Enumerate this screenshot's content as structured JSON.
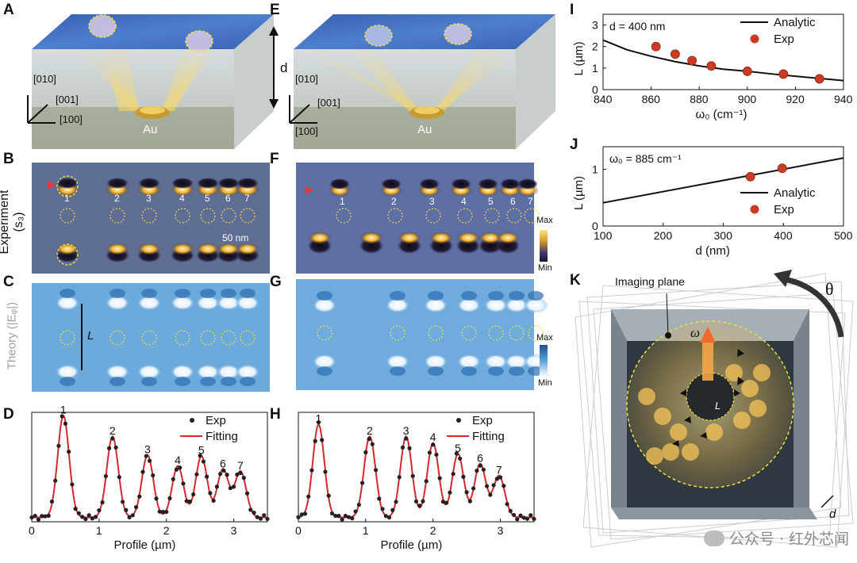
{
  "panels": {
    "A": "A",
    "B": "B",
    "C": "C",
    "D": "D",
    "E": "E",
    "F": "F",
    "G": "G",
    "H": "H",
    "I": "I",
    "J": "J",
    "K": "K"
  },
  "crystal": {
    "axis_010": "[010]",
    "axis_001": "[001]",
    "axis_100": "[100]",
    "au": "Au",
    "d": "d"
  },
  "maps": {
    "experiment_ylabel": "Experiment (s₃)",
    "theory_ylabel": "Theory (|Eᵩ|)",
    "max": "Max",
    "min": "Min",
    "scale": "50 nm",
    "L": "L",
    "markers": [
      "1",
      "2",
      "3",
      "4",
      "5",
      "6",
      "7"
    ]
  },
  "colors": {
    "map_dark": "#2c2f63",
    "map_hot": "#f5b52e",
    "theory_bg": "#4f9ad6",
    "fit_red": "#d6282c",
    "exp_dot": "#cc3b23",
    "glass": "#9fb0bd"
  },
  "profile_labels": {
    "exp": "Exp",
    "fit": "Fitting"
  },
  "chart_data": [
    {
      "type": "line",
      "panel": "D",
      "xlabel": "Profile (µm)",
      "ylabel": "",
      "xlim": [
        0,
        3.5
      ],
      "xticks": [
        "0",
        "1",
        "2",
        "3"
      ],
      "series": [
        {
          "name": "Exp"
        },
        {
          "name": "Fitting"
        }
      ],
      "peaks": [
        {
          "label": "1",
          "x": 0.47,
          "h": 0.93
        },
        {
          "label": "2",
          "x": 1.2,
          "h": 0.74
        },
        {
          "label": "3",
          "x": 1.72,
          "h": 0.57
        },
        {
          "label": "4",
          "x": 2.17,
          "h": 0.47
        },
        {
          "label": "5",
          "x": 2.52,
          "h": 0.56
        },
        {
          "label": "6",
          "x": 2.84,
          "h": 0.44
        },
        {
          "label": "7",
          "x": 3.1,
          "h": 0.42
        }
      ]
    },
    {
      "type": "line",
      "panel": "H",
      "xlabel": "Profile (µm)",
      "ylabel": "",
      "xlim": [
        0,
        3.5
      ],
      "xticks": [
        "0",
        "1",
        "2",
        "3"
      ],
      "series": [
        {
          "name": "Exp"
        },
        {
          "name": "Fitting"
        }
      ],
      "peaks": [
        {
          "label": "1",
          "x": 0.3,
          "h": 0.85
        },
        {
          "label": "2",
          "x": 1.06,
          "h": 0.74
        },
        {
          "label": "3",
          "x": 1.6,
          "h": 0.74
        },
        {
          "label": "4",
          "x": 2.0,
          "h": 0.68
        },
        {
          "label": "5",
          "x": 2.37,
          "h": 0.58
        },
        {
          "label": "6",
          "x": 2.7,
          "h": 0.49
        },
        {
          "label": "7",
          "x": 2.98,
          "h": 0.38
        }
      ]
    },
    {
      "type": "scatter",
      "panel": "I",
      "annotation": "d = 400 nm",
      "xlabel": "ω₀ (cm⁻¹)",
      "ylabel": "L (µm)",
      "xlim": [
        840,
        940
      ],
      "ylim": [
        0,
        3.5
      ],
      "xticks": [
        840,
        860,
        880,
        900,
        920,
        940
      ],
      "yticks": [
        0,
        1,
        2,
        3
      ],
      "legend": "top-right",
      "series": [
        {
          "name": "Analytic",
          "type": "line",
          "x": [
            840,
            850,
            860,
            870,
            880,
            890,
            900,
            910,
            920,
            930,
            940
          ],
          "y": [
            2.3,
            1.85,
            1.55,
            1.3,
            1.1,
            0.95,
            0.85,
            0.73,
            0.62,
            0.52,
            0.42
          ]
        },
        {
          "name": "Exp",
          "type": "scatter",
          "x": [
            862,
            870,
            877,
            885,
            900,
            915,
            930
          ],
          "y": [
            2.0,
            1.65,
            1.35,
            1.1,
            0.85,
            0.72,
            0.5
          ]
        }
      ]
    },
    {
      "type": "scatter",
      "panel": "J",
      "annotation": "ω₀ = 885 cm⁻¹",
      "xlabel": "d (nm)",
      "ylabel": "L (µm)",
      "xlim": [
        100,
        500
      ],
      "ylim": [
        0,
        1.4
      ],
      "xticks": [
        100,
        200,
        300,
        400,
        500
      ],
      "yticks": [
        0,
        1
      ],
      "legend": "bottom-right",
      "series": [
        {
          "name": "Analytic",
          "type": "line",
          "x": [
            100,
            500
          ],
          "y": [
            0.41,
            1.2
          ]
        },
        {
          "name": "Exp",
          "type": "scatter",
          "x": [
            345,
            398
          ],
          "y": [
            0.87,
            1.02
          ]
        }
      ]
    }
  ],
  "k_panel": {
    "imaging_plane": "Imaging plane",
    "omega": "ω",
    "L": "L",
    "theta": "θ",
    "d": "d"
  },
  "watermark": "公众号 · 红外芯闻"
}
